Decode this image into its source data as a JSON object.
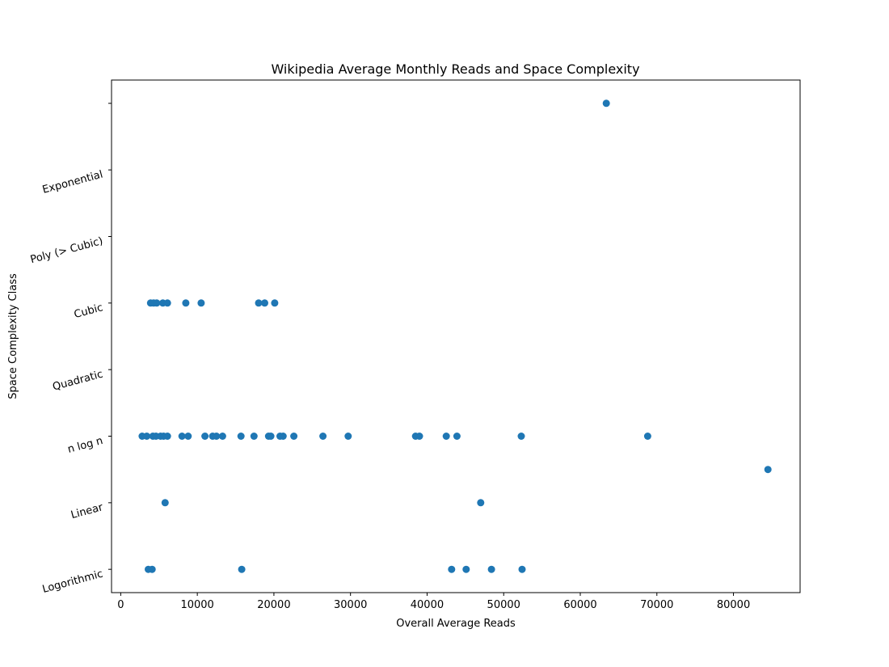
{
  "chart_data": {
    "type": "scatter",
    "title": "Wikipedia Average Monthly Reads and Space Complexity",
    "xlabel": "Overall Average Reads",
    "ylabel": "Space Complexity Class",
    "xlim": [
      -1200,
      88700
    ],
    "ylim": [
      -0.35,
      7.35
    ],
    "x_ticks": [
      0,
      10000,
      20000,
      30000,
      40000,
      50000,
      60000,
      70000,
      80000
    ],
    "y_ticks": [
      {
        "value": 0,
        "label": "Logorithmic"
      },
      {
        "value": 1,
        "label": "Linear"
      },
      {
        "value": 2,
        "label": "n log n"
      },
      {
        "value": 3,
        "label": "Quadratic"
      },
      {
        "value": 4,
        "label": "Cubic"
      },
      {
        "value": 5,
        "label": "Poly (> Cubic)"
      },
      {
        "value": 6,
        "label": "Exponential"
      },
      {
        "value": 7,
        "label": ""
      }
    ],
    "grid": false,
    "color": "#1f77b4",
    "points": [
      {
        "x": 3600,
        "y": 0
      },
      {
        "x": 4100,
        "y": 0
      },
      {
        "x": 15800,
        "y": 0
      },
      {
        "x": 43200,
        "y": 0
      },
      {
        "x": 45100,
        "y": 0
      },
      {
        "x": 48400,
        "y": 0
      },
      {
        "x": 52400,
        "y": 0
      },
      {
        "x": 5800,
        "y": 1
      },
      {
        "x": 47000,
        "y": 1
      },
      {
        "x": 84500,
        "y": 1.5
      },
      {
        "x": 2800,
        "y": 2
      },
      {
        "x": 3400,
        "y": 2
      },
      {
        "x": 4200,
        "y": 2
      },
      {
        "x": 4600,
        "y": 2
      },
      {
        "x": 5200,
        "y": 2
      },
      {
        "x": 5600,
        "y": 2
      },
      {
        "x": 6100,
        "y": 2
      },
      {
        "x": 8000,
        "y": 2
      },
      {
        "x": 8800,
        "y": 2
      },
      {
        "x": 11000,
        "y": 2
      },
      {
        "x": 12000,
        "y": 2
      },
      {
        "x": 12500,
        "y": 2
      },
      {
        "x": 13300,
        "y": 2
      },
      {
        "x": 15700,
        "y": 2
      },
      {
        "x": 17400,
        "y": 2
      },
      {
        "x": 19300,
        "y": 2
      },
      {
        "x": 19600,
        "y": 2
      },
      {
        "x": 20800,
        "y": 2
      },
      {
        "x": 21200,
        "y": 2
      },
      {
        "x": 22600,
        "y": 2
      },
      {
        "x": 26400,
        "y": 2
      },
      {
        "x": 29700,
        "y": 2
      },
      {
        "x": 38500,
        "y": 2
      },
      {
        "x": 39000,
        "y": 2
      },
      {
        "x": 42500,
        "y": 2
      },
      {
        "x": 43900,
        "y": 2
      },
      {
        "x": 52300,
        "y": 2
      },
      {
        "x": 68800,
        "y": 2
      },
      {
        "x": 3900,
        "y": 4
      },
      {
        "x": 4300,
        "y": 4
      },
      {
        "x": 4700,
        "y": 4
      },
      {
        "x": 5500,
        "y": 4
      },
      {
        "x": 6100,
        "y": 4
      },
      {
        "x": 8500,
        "y": 4
      },
      {
        "x": 10500,
        "y": 4
      },
      {
        "x": 18000,
        "y": 4
      },
      {
        "x": 18800,
        "y": 4
      },
      {
        "x": 20100,
        "y": 4
      },
      {
        "x": 63400,
        "y": 7
      }
    ]
  }
}
